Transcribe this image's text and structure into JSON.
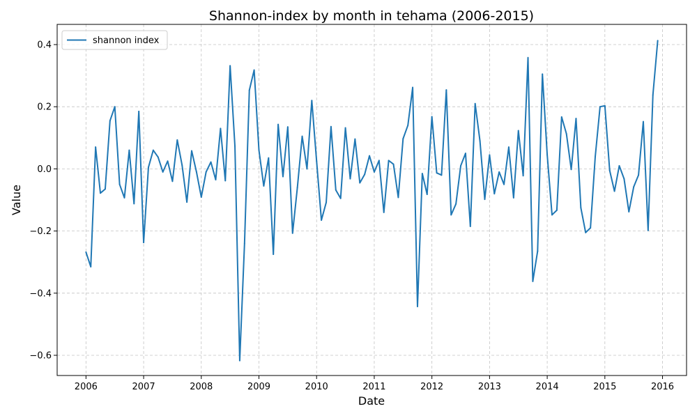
{
  "chart_data": {
    "type": "line",
    "title": "Shannon-index by month in tehama (2006-2015)",
    "xlabel": "Date",
    "ylabel": "Value",
    "x_tick_labels": [
      "2006",
      "2007",
      "2008",
      "2009",
      "2010",
      "2011",
      "2012",
      "2013",
      "2014",
      "2015",
      "2016"
    ],
    "y_ticks": [
      -0.6,
      -0.4,
      -0.2,
      0.0,
      0.2,
      0.4
    ],
    "y_tick_labels": [
      "−0.6",
      "−0.4",
      "−0.2",
      "0.0",
      "0.2",
      "0.4"
    ],
    "xlim": [
      "2005-07",
      "2016-06"
    ],
    "ylim": [
      -0.665,
      0.465
    ],
    "grid": true,
    "legend_position": "top-left",
    "colors": {
      "series": "#1f77b4"
    },
    "series": [
      {
        "name": "shannon index",
        "points": [
          [
            "2006-01",
            -0.268
          ],
          [
            "2006-02",
            -0.315
          ],
          [
            "2006-03",
            0.07
          ],
          [
            "2006-04",
            -0.078
          ],
          [
            "2006-05",
            -0.065
          ],
          [
            "2006-06",
            0.155
          ],
          [
            "2006-07",
            0.2
          ],
          [
            "2006-08",
            -0.05
          ],
          [
            "2006-09",
            -0.093
          ],
          [
            "2006-10",
            0.06
          ],
          [
            "2006-11",
            -0.112
          ],
          [
            "2006-12",
            0.185
          ],
          [
            "2007-01",
            -0.237
          ],
          [
            "2007-02",
            0.005
          ],
          [
            "2007-03",
            0.06
          ],
          [
            "2007-04",
            0.038
          ],
          [
            "2007-05",
            -0.01
          ],
          [
            "2007-06",
            0.025
          ],
          [
            "2007-07",
            -0.04
          ],
          [
            "2007-08",
            0.093
          ],
          [
            "2007-09",
            0.012
          ],
          [
            "2007-10",
            -0.107
          ],
          [
            "2007-11",
            0.058
          ],
          [
            "2007-12",
            -0.01
          ],
          [
            "2008-01",
            -0.091
          ],
          [
            "2008-02",
            -0.01
          ],
          [
            "2008-03",
            0.022
          ],
          [
            "2008-04",
            -0.035
          ],
          [
            "2008-05",
            0.13
          ],
          [
            "2008-06",
            -0.038
          ],
          [
            "2008-07",
            0.332
          ],
          [
            "2008-08",
            0.073
          ],
          [
            "2008-09",
            -0.617
          ],
          [
            "2008-10",
            -0.24
          ],
          [
            "2008-11",
            0.253
          ],
          [
            "2008-12",
            0.318
          ],
          [
            "2009-01",
            0.06
          ],
          [
            "2009-02",
            -0.055
          ],
          [
            "2009-03",
            0.035
          ],
          [
            "2009-04",
            -0.275
          ],
          [
            "2009-05",
            0.143
          ],
          [
            "2009-06",
            -0.025
          ],
          [
            "2009-07",
            0.135
          ],
          [
            "2009-08",
            -0.207
          ],
          [
            "2009-09",
            -0.06
          ],
          [
            "2009-10",
            0.105
          ],
          [
            "2009-11",
            0.0
          ],
          [
            "2009-12",
            0.22
          ],
          [
            "2010-01",
            0.025
          ],
          [
            "2010-02",
            -0.165
          ],
          [
            "2010-03",
            -0.108
          ],
          [
            "2010-04",
            0.136
          ],
          [
            "2010-05",
            -0.068
          ],
          [
            "2010-06",
            -0.095
          ],
          [
            "2010-07",
            0.132
          ],
          [
            "2010-08",
            -0.032
          ],
          [
            "2010-09",
            0.096
          ],
          [
            "2010-10",
            -0.045
          ],
          [
            "2010-11",
            -0.018
          ],
          [
            "2010-12",
            0.042
          ],
          [
            "2011-01",
            -0.01
          ],
          [
            "2011-02",
            0.027
          ],
          [
            "2011-03",
            -0.14
          ],
          [
            "2011-04",
            0.027
          ],
          [
            "2011-05",
            0.015
          ],
          [
            "2011-06",
            -0.092
          ],
          [
            "2011-07",
            0.097
          ],
          [
            "2011-08",
            0.14
          ],
          [
            "2011-09",
            0.262
          ],
          [
            "2011-10",
            -0.443
          ],
          [
            "2011-11",
            -0.015
          ],
          [
            "2011-12",
            -0.082
          ],
          [
            "2012-01",
            0.168
          ],
          [
            "2012-02",
            -0.013
          ],
          [
            "2012-03",
            -0.02
          ],
          [
            "2012-04",
            0.254
          ],
          [
            "2012-05",
            -0.148
          ],
          [
            "2012-06",
            -0.113
          ],
          [
            "2012-07",
            0.01
          ],
          [
            "2012-08",
            0.05
          ],
          [
            "2012-09",
            -0.185
          ],
          [
            "2012-10",
            0.21
          ],
          [
            "2012-11",
            0.09
          ],
          [
            "2012-12",
            -0.098
          ],
          [
            "2013-01",
            0.045
          ],
          [
            "2013-02",
            -0.08
          ],
          [
            "2013-03",
            -0.01
          ],
          [
            "2013-04",
            -0.05
          ],
          [
            "2013-05",
            0.07
          ],
          [
            "2013-06",
            -0.093
          ],
          [
            "2013-07",
            0.123
          ],
          [
            "2013-08",
            -0.022
          ],
          [
            "2013-09",
            0.358
          ],
          [
            "2013-10",
            -0.362
          ],
          [
            "2013-11",
            -0.265
          ],
          [
            "2013-12",
            0.305
          ],
          [
            "2014-01",
            0.045
          ],
          [
            "2014-02",
            -0.148
          ],
          [
            "2014-03",
            -0.133
          ],
          [
            "2014-04",
            0.167
          ],
          [
            "2014-05",
            0.113
          ],
          [
            "2014-06",
            -0.002
          ],
          [
            "2014-07",
            0.162
          ],
          [
            "2014-08",
            -0.125
          ],
          [
            "2014-09",
            -0.205
          ],
          [
            "2014-10",
            -0.19
          ],
          [
            "2014-11",
            0.04
          ],
          [
            "2014-12",
            0.2
          ],
          [
            "2015-01",
            0.203
          ],
          [
            "2015-02",
            -0.005
          ],
          [
            "2015-03",
            -0.072
          ],
          [
            "2015-04",
            0.01
          ],
          [
            "2015-05",
            -0.032
          ],
          [
            "2015-06",
            -0.138
          ],
          [
            "2015-07",
            -0.058
          ],
          [
            "2015-08",
            -0.02
          ],
          [
            "2015-09",
            0.152
          ],
          [
            "2015-10",
            -0.198
          ],
          [
            "2015-11",
            0.238
          ],
          [
            "2015-12",
            0.413
          ]
        ]
      }
    ]
  }
}
